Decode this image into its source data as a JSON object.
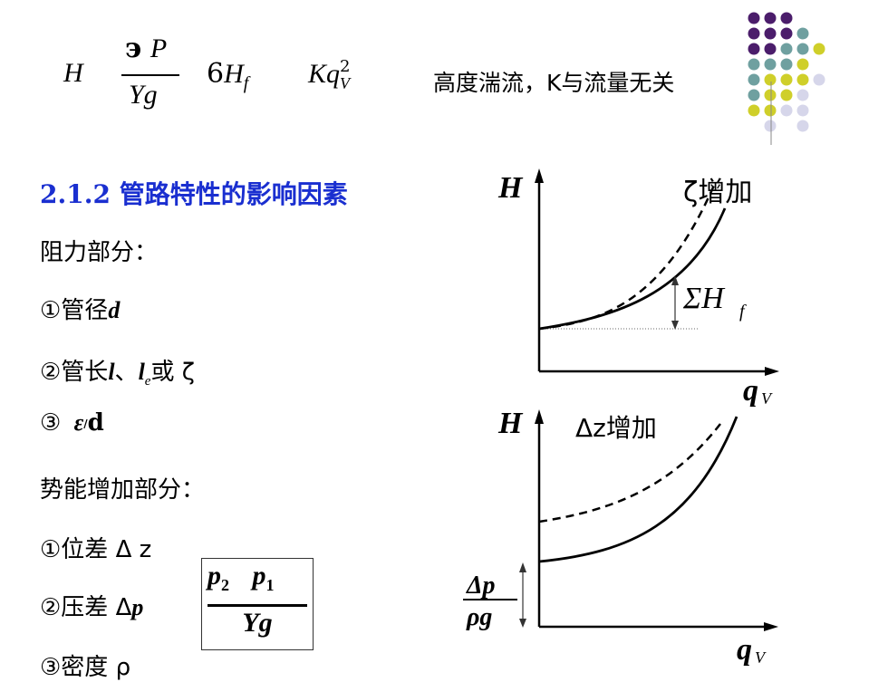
{
  "top_formula": {
    "H": "H",
    "num_prefix": "э",
    "num_P": "P",
    "den": "Yg",
    "coef": "6",
    "Hf_main": "H",
    "Hf_sub": "f",
    "K": "Kq",
    "q_sup": "2",
    "q_sub": "V"
  },
  "top_note": "高度湍流，K与流量无关",
  "section_heading": "2.1.2 管路特性的影响因素",
  "items": {
    "resistance_title": "阻力部分：",
    "r1_prefix": "①管径",
    "r1_var": "d",
    "r2_prefix": "②管长",
    "r2_var_l": "l",
    "r2_sep": "、",
    "r2_var_le": "l",
    "r2_sub_e": "e",
    "r2_suffix": "或 ζ",
    "r3_prefix": "③",
    "r3_eps": "ε",
    "r3_slash": "/",
    "r3_d": "d",
    "potential_title": "势能增加部分：",
    "p1": "①位差 Δ z",
    "p2_prefix": "②压差 Δ",
    "p2_var": "p",
    "p3": "③密度 ρ"
  },
  "boxed_formula": {
    "num_p2": "p",
    "num_p2_sub": "2",
    "num_p1": "p",
    "num_p1_sub": "1",
    "den": "Yg"
  },
  "graph1": {
    "y_label": "H",
    "x_label": "q",
    "x_sub": "V",
    "curve_label": "ζ增加",
    "annotation": "ΣH",
    "annotation_sub": "f"
  },
  "graph2": {
    "y_label": "H",
    "x_label": "q",
    "x_sub": "V",
    "curve_label": "Δz增加",
    "intercept_num": "Δp",
    "intercept_den": "ρg"
  },
  "colors": {
    "heading": "#1a2fd0",
    "dot_purple": "#4b1d6b",
    "dot_teal": "#6fa0a0",
    "dot_yellow": "#cfcf2a",
    "dot_lilac": "#d6d6ea"
  }
}
